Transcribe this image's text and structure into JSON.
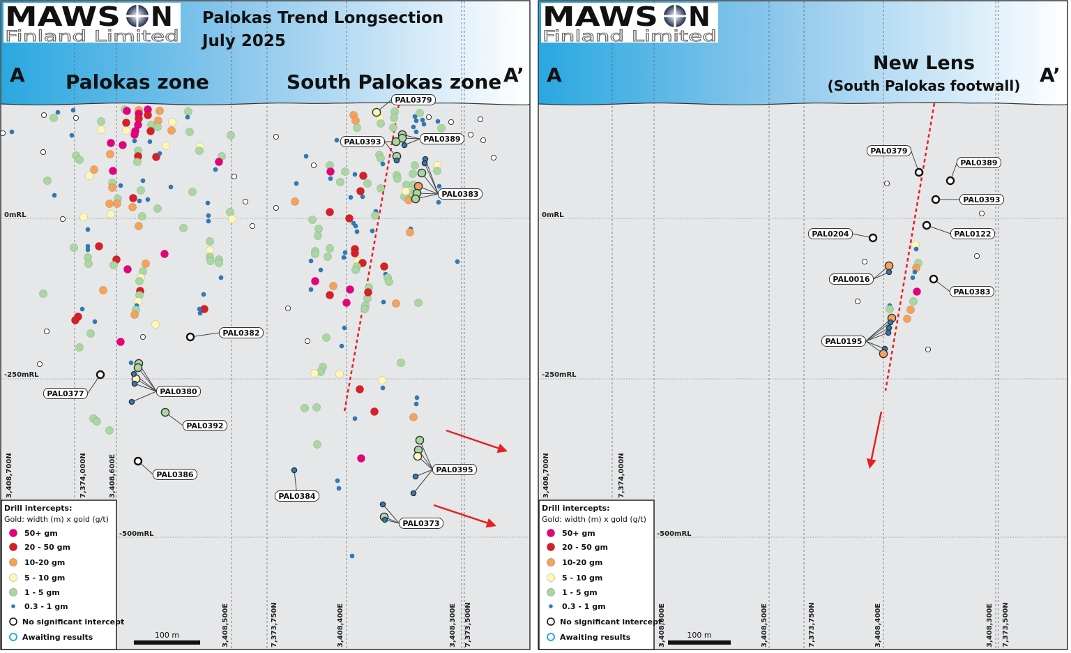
{
  "logo": {
    "name": "MAWSON",
    "sub": "Finland Limited"
  },
  "colors": {
    "50+": "#e6007e",
    "20-50": "#d91f26",
    "10-20": "#f5a25a",
    "5-10": "#fdf7b8",
    "1-5": "#a9d6a1",
    "0.3-1": "#2b7bbb",
    "none": "#ffffff",
    "awaiting": "#29abe2",
    "header_start": "#29a8e0",
    "background": "#e6e7e9",
    "trend": "#e62020"
  },
  "left": {
    "title_line1": "Palokas Trend Longsection",
    "title_line2": "July 2025",
    "section_start": "A",
    "section_end": "A’",
    "zone1": "Palokas zone",
    "zone2": "South Palokas zone",
    "rl_labels": [
      "0mRL",
      "-250mRL",
      "-500mRL"
    ],
    "grid_labels_top": [
      "3,408,700N",
      "7,374,000N",
      "3,408,600E"
    ],
    "grid_labels_bottom": [
      "3,408,500E",
      "7,373,750N",
      "3,408,400E",
      "3,408,300E",
      "7,373,500N"
    ],
    "hole_labels": [
      "PAL0379",
      "PAL0393",
      "PAL0389",
      "PAL0383",
      "PAL0382",
      "PAL0377",
      "PAL0380",
      "PAL0392",
      "PAL0386",
      "PAL0384",
      "PAL0395",
      "PAL0373"
    ],
    "scale": "100 m"
  },
  "right": {
    "section_start": "A",
    "section_end": "A’",
    "zone_title": "New Lens",
    "zone_subtitle": "(South Palokas footwall)",
    "rl_labels": [
      "0mRL",
      "-250mRL",
      "-500mRL"
    ],
    "grid_labels_top": [
      "3,408,700N",
      "7,374,000N"
    ],
    "grid_labels_bottom": [
      "3,408,600E",
      "3,408,500E",
      "7,373,750N",
      "3,408,400E",
      "3,408,300E",
      "7,373,500N"
    ],
    "hole_labels": [
      "PAL0379",
      "PAL0389",
      "PAL0393",
      "PAL0122",
      "PAL0204",
      "PAL0016",
      "PAL0383",
      "PAL0195"
    ],
    "scale": "100 m"
  },
  "legend": {
    "title": "Drill intercepts:",
    "subtitle": "Gold: width (m) x gold (g/t)",
    "items": [
      {
        "key": "50+",
        "label": "50+ gm"
      },
      {
        "key": "20-50",
        "label": "20 - 50 gm"
      },
      {
        "key": "10-20",
        "label": "10-20 gm"
      },
      {
        "key": "5-10",
        "label": "5 - 10 gm"
      },
      {
        "key": "1-5",
        "label": "1 - 5 gm"
      },
      {
        "key": "0.3-1",
        "label": "0.3 - 1 gm"
      },
      {
        "key": "none",
        "label": "No significant intercept"
      },
      {
        "key": "awaiting",
        "label": "Awaiting results"
      }
    ]
  }
}
